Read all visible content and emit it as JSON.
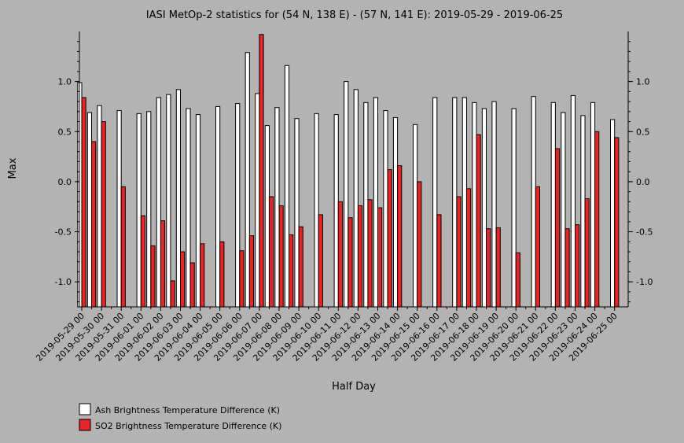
{
  "chart_data": {
    "type": "bar",
    "title": "IASI MetOp-2 statistics for (54 N, 138 E) - (57 N, 141 E): 2019-05-29 - 2019-06-25",
    "xlabel": "Half Day",
    "ylabel": "Max",
    "ylim": [
      -1.25,
      1.5
    ],
    "yticks": [
      -1.0,
      -0.5,
      0.0,
      0.5,
      1.0
    ],
    "ytick_labels": [
      "-1.0",
      "-0.5",
      "0.0",
      "0.5",
      "1.0"
    ],
    "categories": [
      "2019-05-29 00",
      "2019-05-29 12",
      "2019-05-30 00",
      "2019-05-30 12",
      "2019-05-31 00",
      "2019-05-31 12",
      "2019-06-01 00",
      "2019-06-01 12",
      "2019-06-02 00",
      "2019-06-02 12",
      "2019-06-03 00",
      "2019-06-03 12",
      "2019-06-04 00",
      "2019-06-04 12",
      "2019-06-05 00",
      "2019-06-05 12",
      "2019-06-06 00",
      "2019-06-06 12",
      "2019-06-07 00",
      "2019-06-07 12",
      "2019-06-08 00",
      "2019-06-08 12",
      "2019-06-09 00",
      "2019-06-09 12",
      "2019-06-10 00",
      "2019-06-10 12",
      "2019-06-11 00",
      "2019-06-11 12",
      "2019-06-12 00",
      "2019-06-12 12",
      "2019-06-13 00",
      "2019-06-13 12",
      "2019-06-14 00",
      "2019-06-14 12",
      "2019-06-15 00",
      "2019-06-15 12",
      "2019-06-16 00",
      "2019-06-16 12",
      "2019-06-17 00",
      "2019-06-17 12",
      "2019-06-18 00",
      "2019-06-18 12",
      "2019-06-19 00",
      "2019-06-19 12",
      "2019-06-20 00",
      "2019-06-20 12",
      "2019-06-21 00",
      "2019-06-21 12",
      "2019-06-22 00",
      "2019-06-22 12",
      "2019-06-23 00",
      "2019-06-23 12",
      "2019-06-24 00",
      "2019-06-24 12",
      "2019-06-25 00"
    ],
    "xtick_labels": [
      "2019-05-29 00",
      "2019-05-30 00",
      "2019-05-31 00",
      "2019-06-01 00",
      "2019-06-02 00",
      "2019-06-03 00",
      "2019-06-04 00",
      "2019-06-05 00",
      "2019-06-06 00",
      "2019-06-07 00",
      "2019-06-08 00",
      "2019-06-09 00",
      "2019-06-10 00",
      "2019-06-11 00",
      "2019-06-12 00",
      "2019-06-13 00",
      "2019-06-14 00",
      "2019-06-15 00",
      "2019-06-16 00",
      "2019-06-17 00",
      "2019-06-18 00",
      "2019-06-19 00",
      "2019-06-20 00",
      "2019-06-21 00",
      "2019-06-22 00",
      "2019-06-23 00",
      "2019-06-24 00",
      "2019-06-25 00"
    ],
    "series": [
      {
        "name": "Ash Brightness Temperature Difference (K)",
        "color": "#ffffff",
        "values": [
          0.99,
          0.69,
          0.76,
          null,
          0.71,
          null,
          0.68,
          0.7,
          0.84,
          0.87,
          0.92,
          0.73,
          0.67,
          null,
          0.75,
          null,
          0.78,
          1.29,
          0.88,
          0.56,
          0.74,
          1.16,
          0.63,
          null,
          0.68,
          null,
          0.67,
          1.0,
          0.92,
          0.79,
          0.84,
          0.71,
          0.64,
          null,
          0.57,
          null,
          0.84,
          null,
          0.84,
          0.84,
          0.79,
          0.73,
          0.8,
          null,
          0.73,
          null,
          0.85,
          null,
          0.79,
          0.69,
          0.86,
          0.66,
          0.79,
          null,
          0.62
        ]
      },
      {
        "name": "SO2 Brightness Temperature Difference (K)",
        "color": "#ee2222",
        "values": [
          0.84,
          0.4,
          0.6,
          null,
          -0.05,
          null,
          -0.34,
          -0.64,
          -0.39,
          -0.99,
          -0.7,
          -0.81,
          -0.62,
          null,
          -0.6,
          null,
          -0.69,
          -0.54,
          1.47,
          -0.15,
          -0.24,
          -0.53,
          -0.45,
          null,
          -0.33,
          null,
          -0.2,
          -0.36,
          -0.24,
          -0.18,
          -0.26,
          0.12,
          0.16,
          null,
          0.0,
          null,
          -0.33,
          null,
          -0.15,
          -0.07,
          0.47,
          -0.47,
          -0.46,
          null,
          -0.71,
          null,
          -0.05,
          null,
          0.33,
          -0.47,
          -0.43,
          -0.17,
          0.5,
          null,
          0.44
        ]
      }
    ],
    "legend": {
      "placement": "bottom-left",
      "entries": [
        {
          "label": "Ash Brightness Temperature Difference (K)",
          "color": "#ffffff"
        },
        {
          "label": "SO2 Brightness Temperature Difference (K)",
          "color": "#ee2222"
        }
      ]
    },
    "grid": false
  }
}
